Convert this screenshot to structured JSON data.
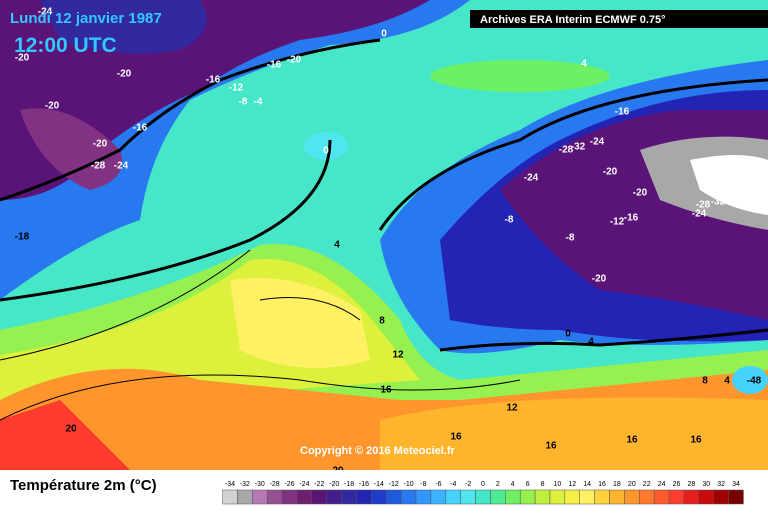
{
  "header": {
    "date": "Lundi 12 janvier 1987",
    "time": "12:00 UTC",
    "source": "Archives ERA Interim ECMWF 0.75°"
  },
  "copyright": "Copyright © 2016 Meteociel.fr",
  "map": {
    "contour_labels": [
      -24,
      -20,
      -20,
      -16,
      -16,
      -20,
      -12,
      -8,
      -4,
      -20,
      -16,
      -20,
      -28,
      -24,
      0,
      0,
      4,
      -16,
      -28,
      -32,
      -24,
      -24,
      -20,
      -20,
      -36,
      -28,
      -32,
      -24,
      -8,
      -12,
      -16,
      -8,
      -20,
      0,
      4,
      4,
      8,
      12,
      16,
      8,
      4,
      -48,
      12,
      16,
      16,
      16,
      16,
      20,
      20,
      -18
    ]
  },
  "legend": {
    "title": "Température 2m (°C)",
    "ticks": [
      -34,
      -32,
      -30,
      -28,
      -26,
      -24,
      -22,
      -20,
      -18,
      -16,
      -14,
      -12,
      -10,
      -8,
      -6,
      -4,
      -2,
      0,
      2,
      4,
      6,
      8,
      10,
      12,
      14,
      16,
      18,
      20,
      22,
      24,
      26,
      28,
      30,
      32,
      34
    ],
    "colors": [
      "#d2d2d2",
      "#a8a8a8",
      "#b478b4",
      "#965096",
      "#823282",
      "#6e1e6e",
      "#5a1478",
      "#461e8c",
      "#3228a0",
      "#2323b4",
      "#1e3cc8",
      "#1e5adc",
      "#2878f0",
      "#3296ff",
      "#3cb4ff",
      "#46d2ff",
      "#50e6f0",
      "#46e6c8",
      "#50eb96",
      "#6ef064",
      "#96f050",
      "#bef03c",
      "#dcf03c",
      "#f5f046",
      "#fff064",
      "#ffd23c",
      "#ffb42d",
      "#ff962d",
      "#ff782d",
      "#ff5a2d",
      "#ff3c2d",
      "#e61e1e",
      "#c80a0a",
      "#a00000",
      "#780000"
    ]
  }
}
